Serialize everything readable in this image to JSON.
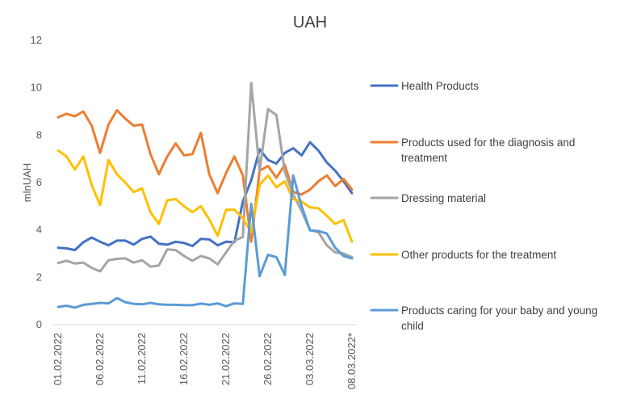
{
  "chart_data": {
    "type": "line",
    "title": "UAH",
    "ylabel": "mlnUAH",
    "xlabel": "",
    "ylim": [
      0,
      12
    ],
    "yticks": [
      0,
      2,
      4,
      6,
      8,
      10,
      12
    ],
    "grid": false,
    "legend_position": "right",
    "x": [
      "01.02.2022",
      "02.02.2022",
      "03.02.2022",
      "04.02.2022",
      "05.02.2022",
      "06.02.2022",
      "07.02.2022",
      "08.02.2022",
      "09.02.2022",
      "10.02.2022",
      "11.02.2022",
      "12.02.2022",
      "13.02.2022",
      "14.02.2022",
      "15.02.2022",
      "16.02.2022",
      "17.02.2022",
      "18.02.2022",
      "19.02.2022",
      "20.02.2022",
      "21.02.2022",
      "22.02.2022",
      "23.02.2022",
      "24.02.2022",
      "25.02.2022",
      "26.02.2022",
      "27.02.2022",
      "28.02.2022",
      "01.03.2022",
      "02.03.2022",
      "03.03.2022",
      "04.03.2022",
      "05.03.2022",
      "06.03.2022",
      "07.03.2022",
      "08.03.2022*"
    ],
    "x_tick_labels": [
      "01.02.2022",
      "06.02.2022",
      "11.02.2022",
      "16.02.2022",
      "21.02.2022",
      "26.02.2022",
      "03.03.2022",
      "08.03.2022*"
    ],
    "x_tick_indices": [
      0,
      5,
      10,
      15,
      20,
      25,
      30,
      35
    ],
    "series": [
      {
        "name": "Health Products",
        "color": "#4472C4",
        "values": [
          3.25,
          3.22,
          3.15,
          3.48,
          3.68,
          3.5,
          3.35,
          3.55,
          3.55,
          3.38,
          3.62,
          3.72,
          3.42,
          3.38,
          3.5,
          3.45,
          3.32,
          3.62,
          3.6,
          3.35,
          3.5,
          3.48,
          5.2,
          6.1,
          7.4,
          6.95,
          6.8,
          7.25,
          7.45,
          7.15,
          7.7,
          7.35,
          6.85,
          6.5,
          6.05,
          5.55
        ]
      },
      {
        "name": "Products used for the diagnosis and treatment",
        "color": "#ED7D31",
        "values": [
          8.75,
          8.9,
          8.8,
          9.0,
          8.4,
          7.25,
          8.45,
          9.05,
          8.7,
          8.4,
          8.45,
          7.2,
          6.35,
          7.1,
          7.65,
          7.15,
          7.2,
          8.1,
          6.35,
          5.55,
          6.4,
          7.1,
          6.3,
          3.5,
          6.5,
          6.7,
          6.2,
          6.75,
          5.6,
          5.5,
          5.7,
          6.05,
          6.3,
          5.85,
          6.15,
          5.7
        ]
      },
      {
        "name": "Dressing material",
        "color": "#A5A5A5",
        "values": [
          2.6,
          2.7,
          2.58,
          2.62,
          2.4,
          2.25,
          2.72,
          2.78,
          2.8,
          2.62,
          2.72,
          2.45,
          2.5,
          3.18,
          3.15,
          2.9,
          2.7,
          2.9,
          2.8,
          2.55,
          3.05,
          3.55,
          3.7,
          10.2,
          6.5,
          9.1,
          8.85,
          6.45,
          5.5,
          4.8,
          4.0,
          3.9,
          3.35,
          3.05,
          3.0,
          2.85
        ]
      },
      {
        "name": "Other products for the treatment",
        "color": "#FFC000",
        "values": [
          7.35,
          7.1,
          6.55,
          7.1,
          5.9,
          5.05,
          6.95,
          6.35,
          6.0,
          5.6,
          5.75,
          4.75,
          4.25,
          5.25,
          5.3,
          5.0,
          4.75,
          5.0,
          4.45,
          3.75,
          4.85,
          4.85,
          4.5,
          3.9,
          5.9,
          6.3,
          5.8,
          6.05,
          5.3,
          5.2,
          4.95,
          4.92,
          4.6,
          4.25,
          4.42,
          3.5
        ]
      },
      {
        "name": "Products caring for your baby and young child",
        "color": "#5B9BD5",
        "values": [
          0.75,
          0.8,
          0.72,
          0.84,
          0.88,
          0.92,
          0.9,
          1.12,
          0.95,
          0.88,
          0.86,
          0.92,
          0.86,
          0.84,
          0.84,
          0.83,
          0.82,
          0.89,
          0.84,
          0.9,
          0.78,
          0.9,
          0.88,
          5.1,
          2.05,
          2.95,
          2.85,
          2.1,
          6.3,
          5.0,
          3.98,
          3.95,
          3.85,
          3.25,
          2.9,
          2.8
        ]
      }
    ]
  }
}
